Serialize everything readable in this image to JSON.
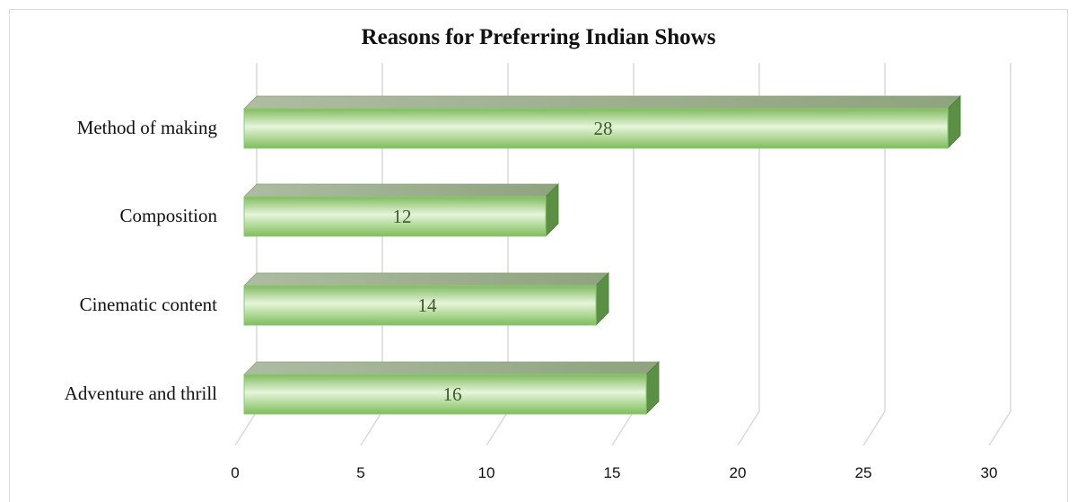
{
  "chart_data": {
    "type": "bar",
    "orientation": "horizontal",
    "title": "Reasons for Preferring Indian Shows",
    "categories": [
      "Method of making",
      "Composition",
      "Cinematic content",
      "Adventure and thrill"
    ],
    "values": [
      28,
      12,
      14,
      16
    ],
    "xlim": [
      0,
      30
    ],
    "xticks": [
      0,
      5,
      10,
      15,
      20,
      25,
      30
    ],
    "xlabel": "",
    "ylabel": "",
    "grid": true,
    "legend": "none",
    "data_labels": true,
    "bar_color": "#8cc870",
    "bar_color_dark": "#5b8f45",
    "bar_top_color": "#9eb191"
  }
}
